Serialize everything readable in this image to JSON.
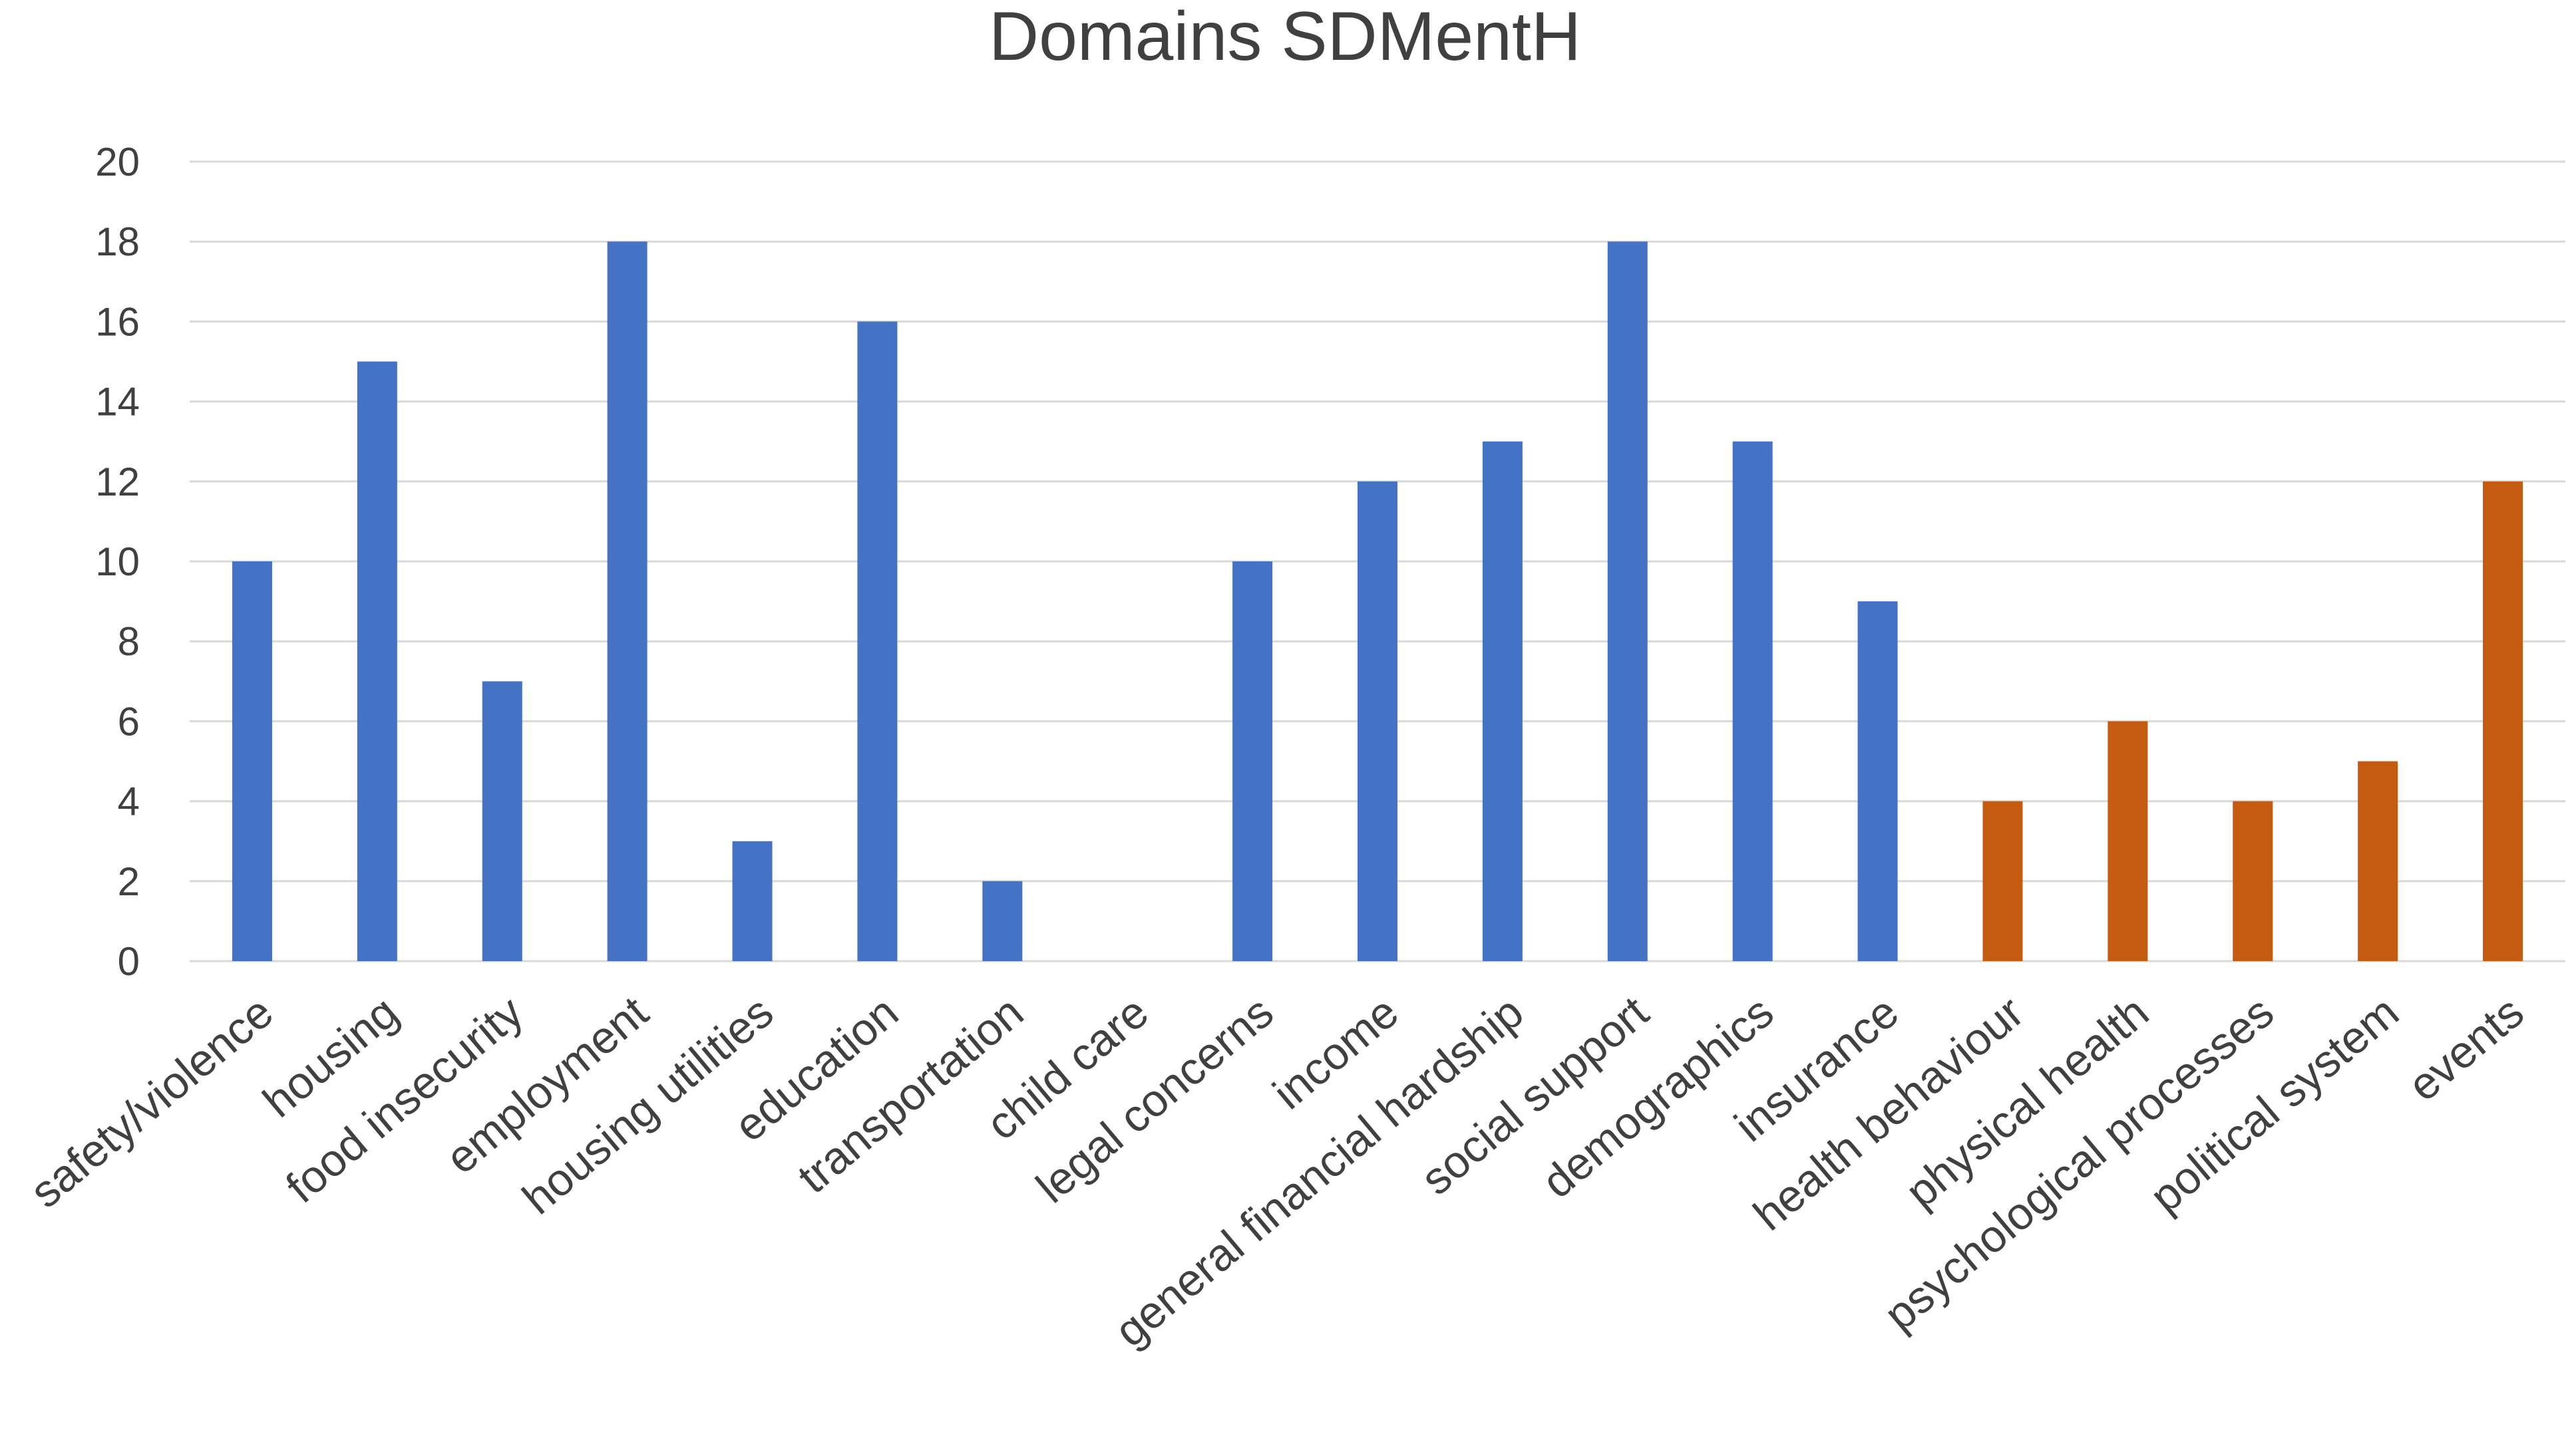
{
  "chart_data": {
    "type": "bar",
    "title": "Domains SDMentH",
    "xlabel": "",
    "ylabel": "",
    "ylim": [
      0,
      20
    ],
    "yticks": [
      0,
      2,
      4,
      6,
      8,
      10,
      12,
      14,
      16,
      18,
      20
    ],
    "grid": true,
    "legend": "none",
    "categories": [
      "safety/violence",
      "housing",
      "food insecurity",
      "employment",
      "housing utilities",
      "education",
      "transportation",
      "child care",
      "legal concerns",
      "income",
      "general financial hardship",
      "social support",
      "demographics",
      "insurance",
      "health behaviour",
      "physical health",
      "psychological processes",
      "political system",
      "events"
    ],
    "values": [
      10,
      15,
      7,
      18,
      3,
      16,
      2,
      0,
      10,
      12,
      13,
      18,
      13,
      9,
      4,
      6,
      4,
      5,
      12
    ],
    "colors": [
      "#4472c4",
      "#4472c4",
      "#4472c4",
      "#4472c4",
      "#4472c4",
      "#4472c4",
      "#4472c4",
      "#4472c4",
      "#4472c4",
      "#4472c4",
      "#4472c4",
      "#4472c4",
      "#4472c4",
      "#4472c4",
      "#c55a11",
      "#c55a11",
      "#c55a11",
      "#c55a11",
      "#c55a11"
    ]
  }
}
